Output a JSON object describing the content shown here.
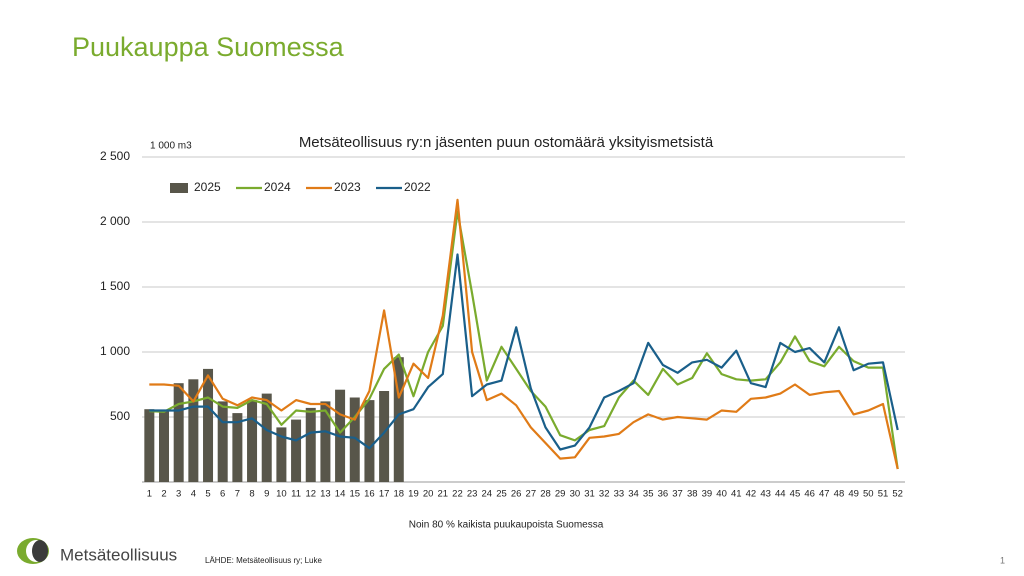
{
  "header": {
    "title": "Puukauppa Suomessa"
  },
  "chart_data": {
    "type": "bar-line",
    "title": "Metsäteollisuus ry:n jäsenten puun ostomäärä yksityismetsistä",
    "unit": "1 000 m3",
    "xlabel": "Noin 80 % kaikista puukaupoista Suomessa",
    "categories": [
      1,
      2,
      3,
      4,
      5,
      6,
      7,
      8,
      9,
      10,
      11,
      12,
      13,
      14,
      15,
      16,
      17,
      18,
      19,
      20,
      21,
      22,
      23,
      24,
      25,
      26,
      27,
      28,
      29,
      30,
      31,
      32,
      33,
      34,
      35,
      36,
      37,
      38,
      39,
      40,
      41,
      42,
      43,
      44,
      45,
      46,
      47,
      48,
      49,
      50,
      51,
      52
    ],
    "ylim": [
      0,
      2500
    ],
    "yticks": [
      500,
      {
        "value": 1000,
        "label": "1 000"
      },
      {
        "value": 1500,
        "label": "1 500"
      },
      {
        "value": 2000,
        "label": "2 000"
      },
      {
        "value": 2500,
        "label": "2 500"
      }
    ],
    "grid": true,
    "legend": "top-left",
    "series": [
      {
        "name": "2025",
        "type": "bar",
        "color": "#58564a",
        "values": [
          560,
          550,
          760,
          790,
          870,
          620,
          530,
          630,
          680,
          420,
          480,
          570,
          620,
          710,
          650,
          630,
          700,
          960,
          null,
          null,
          null,
          null,
          null,
          null,
          null,
          null,
          null,
          null,
          null,
          null,
          null,
          null,
          null,
          null,
          null,
          null,
          null,
          null,
          null,
          null,
          null,
          null,
          null,
          null,
          null,
          null,
          null,
          null,
          null,
          null,
          null,
          null
        ]
      },
      {
        "name": "2024",
        "type": "line",
        "color": "#7aab2e",
        "values": [
          545,
          540,
          600,
          620,
          650,
          580,
          570,
          630,
          600,
          440,
          550,
          540,
          550,
          380,
          500,
          640,
          870,
          980,
          660,
          1000,
          1200,
          2080,
          1450,
          780,
          1040,
          870,
          700,
          580,
          360,
          320,
          400,
          430,
          650,
          780,
          670,
          870,
          750,
          800,
          990,
          830,
          790,
          780,
          790,
          920,
          1120,
          930,
          890,
          1040,
          930,
          880,
          880,
          100
        ]
      },
      {
        "name": "2023",
        "type": "line",
        "color": "#e07b17",
        "values": [
          750,
          750,
          740,
          620,
          820,
          640,
          590,
          650,
          630,
          550,
          630,
          600,
          600,
          520,
          480,
          700,
          1320,
          650,
          910,
          800,
          1280,
          2170,
          1000,
          630,
          680,
          590,
          420,
          300,
          180,
          190,
          340,
          350,
          370,
          460,
          520,
          480,
          500,
          490,
          480,
          550,
          540,
          640,
          650,
          680,
          750,
          670,
          690,
          700,
          520,
          550,
          600,
          100
        ]
      },
      {
        "name": "2022",
        "type": "line",
        "color": "#1a5f8a",
        "values": [
          550,
          550,
          550,
          580,
          580,
          460,
          460,
          490,
          400,
          350,
          320,
          380,
          390,
          350,
          340,
          260,
          380,
          520,
          560,
          730,
          830,
          1750,
          660,
          750,
          780,
          1190,
          720,
          420,
          250,
          280,
          420,
          650,
          700,
          760,
          1070,
          900,
          840,
          920,
          940,
          880,
          1010,
          760,
          730,
          1070,
          1000,
          1030,
          920,
          1190,
          860,
          910,
          920,
          400
        ]
      }
    ]
  },
  "footer": {
    "logo": "Metsäteollisuus",
    "source": "LÄHDE: Metsäteollisuus ry; Luke",
    "page": "1"
  }
}
